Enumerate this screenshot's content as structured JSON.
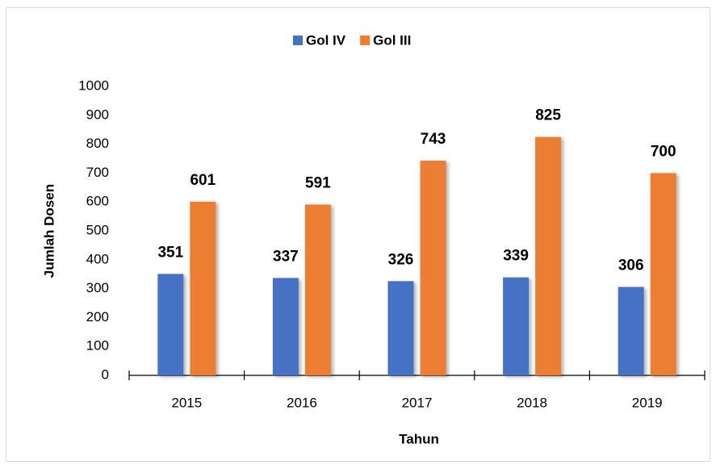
{
  "chart_data": {
    "type": "bar",
    "categories": [
      "2015",
      "2016",
      "2017",
      "2018",
      "2019"
    ],
    "series": [
      {
        "name": "Gol IV",
        "color": "#4472c4",
        "values": [
          351,
          337,
          326,
          339,
          306
        ]
      },
      {
        "name": "Gol III",
        "color": "#ed7d31",
        "values": [
          601,
          591,
          743,
          825,
          700
        ]
      }
    ],
    "x_label": "Tahun",
    "y_label": "Jumlah Dosen",
    "ylim": [
      0,
      1000
    ],
    "yticks": [
      0,
      100,
      200,
      300,
      400,
      500,
      600,
      700,
      800,
      900,
      1000
    ],
    "legend": "top"
  }
}
